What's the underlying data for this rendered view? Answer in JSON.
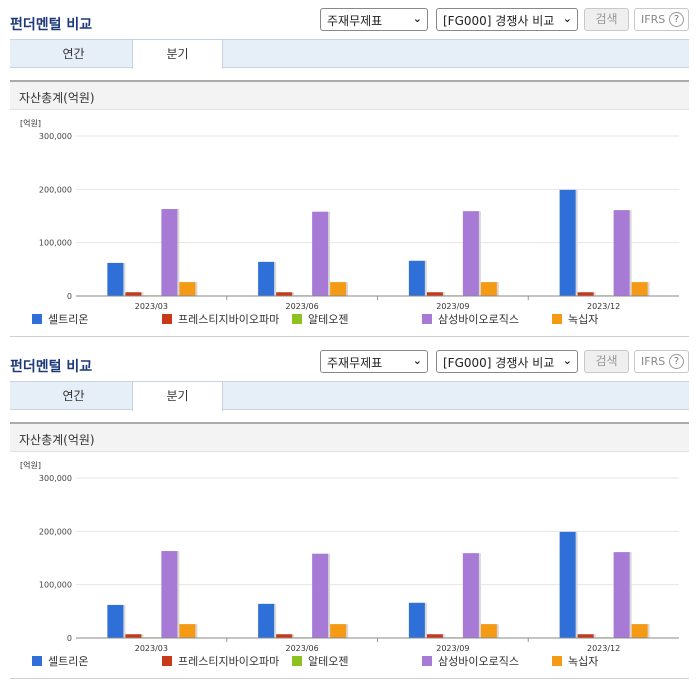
{
  "header": {
    "title": "펀더멘털 비교",
    "statement_select": "주재무제표",
    "peer_select": "[FG000] 경쟁사 비교",
    "search_label": "검색",
    "ifrs_label": "IFRS",
    "help_glyph": "?"
  },
  "tabs": [
    {
      "label": "연간",
      "active": false
    },
    {
      "label": "분기",
      "active": true
    }
  ],
  "section": {
    "title": "자산총계(억원)"
  },
  "colors": {
    "셀트리온": "#2f6fd8",
    "프레스티지바이오파마": "#c8391a",
    "알테오젠": "#8dc21f",
    "삼성바이오로직스": "#a77ad6",
    "녹십자": "#f59a14",
    "title": "#1f3a7a",
    "tab_bg": "#e6eef8"
  },
  "chart_data": {
    "type": "bar",
    "unit_label": "[억원]",
    "title": "",
    "xlabel": "",
    "ylabel": "",
    "categories": [
      "2023/03",
      "2023/06",
      "2023/09",
      "2023/12"
    ],
    "ylim": [
      0,
      300000
    ],
    "yticks": [
      0,
      100000,
      200000,
      300000
    ],
    "ytick_labels": [
      "0",
      "100,000",
      "200,000",
      "300,000"
    ],
    "grid": true,
    "legend_position": "bottom",
    "series": [
      {
        "name": "셀트리온",
        "values": [
          62000,
          64000,
          66000,
          199000
        ]
      },
      {
        "name": "프레스티지바이오파마",
        "values": [
          7000,
          7000,
          7000,
          7000
        ]
      },
      {
        "name": "알테오젠",
        "values": [
          800,
          800,
          800,
          800
        ]
      },
      {
        "name": "삼성바이오로직스",
        "values": [
          163000,
          158000,
          159000,
          161000
        ]
      },
      {
        "name": "녹십자",
        "values": [
          26000,
          26000,
          26000,
          26000
        ]
      }
    ]
  }
}
